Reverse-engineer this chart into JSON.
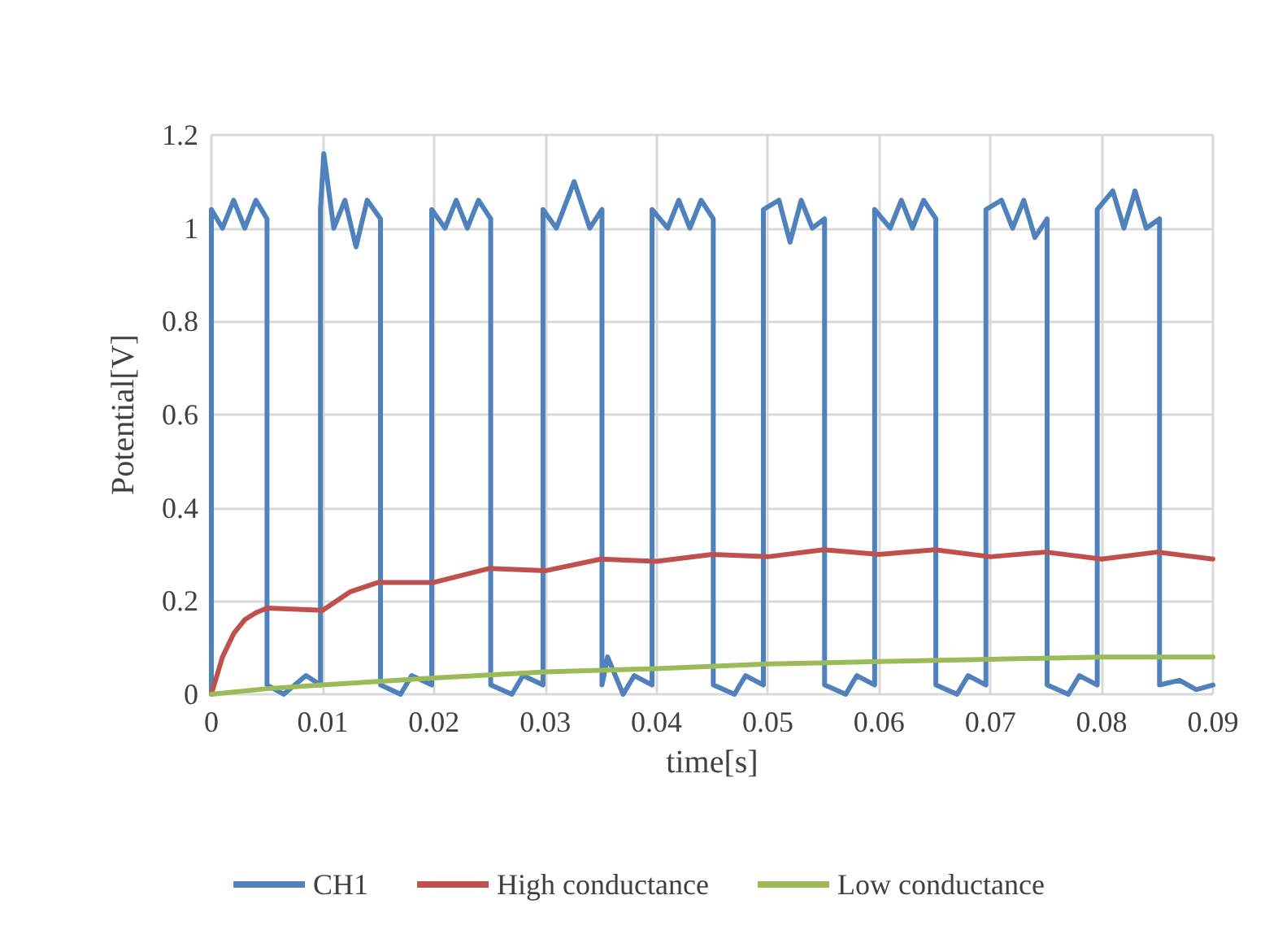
{
  "chart_data": {
    "type": "line",
    "xlabel": "time[s]",
    "ylabel": "Potential[V]",
    "xlim": [
      0,
      0.09
    ],
    "ylim": [
      0,
      1.2
    ],
    "xticks": [
      0,
      0.01,
      0.02,
      0.03,
      0.04,
      0.05,
      0.06,
      0.07,
      0.08,
      0.09
    ],
    "yticks": [
      0,
      0.2,
      0.4,
      0.6,
      0.8,
      1,
      1.2
    ],
    "grid": true,
    "legend": "bottom",
    "marker": "none",
    "line_style": "solid",
    "series": [
      {
        "name": "CH1",
        "color": "#4f81bd",
        "x": [
          0,
          0,
          0.001,
          0.002,
          0.003,
          0.004,
          0.005,
          0.005,
          0.0065,
          0.0085,
          0.0098,
          0.0098,
          0.0101,
          0.011,
          0.012,
          0.013,
          0.014,
          0.0152,
          0.0152,
          0.017,
          0.018,
          0.0198,
          0.0198,
          0.021,
          0.022,
          0.023,
          0.024,
          0.0251,
          0.0251,
          0.027,
          0.028,
          0.0298,
          0.0298,
          0.031,
          0.0326,
          0.034,
          0.0351,
          0.0351,
          0.0356,
          0.037,
          0.038,
          0.0396,
          0.0396,
          0.041,
          0.042,
          0.043,
          0.044,
          0.0451,
          0.0451,
          0.047,
          0.048,
          0.0496,
          0.0496,
          0.051,
          0.052,
          0.053,
          0.054,
          0.0551,
          0.0551,
          0.057,
          0.058,
          0.0596,
          0.0596,
          0.061,
          0.062,
          0.063,
          0.064,
          0.0651,
          0.0651,
          0.067,
          0.068,
          0.0696,
          0.0696,
          0.071,
          0.072,
          0.073,
          0.074,
          0.0751,
          0.0751,
          0.077,
          0.078,
          0.0796,
          0.0796,
          0.081,
          0.082,
          0.083,
          0.084,
          0.0852,
          0.0852,
          0.087,
          0.0885,
          0.09
        ],
        "values": [
          0,
          1.04,
          1,
          1.06,
          1,
          1.06,
          1.02,
          0.02,
          0,
          0.04,
          0.02,
          1.04,
          1.16,
          1,
          1.06,
          0.96,
          1.06,
          1.02,
          0.02,
          0,
          0.04,
          0.02,
          1.04,
          1,
          1.06,
          1,
          1.06,
          1.02,
          0.02,
          0,
          0.04,
          0.02,
          1.04,
          1,
          1.1,
          1,
          1.04,
          0.02,
          0.08,
          0,
          0.04,
          0.02,
          1.04,
          1,
          1.06,
          1,
          1.06,
          1.02,
          0.02,
          0,
          0.04,
          0.02,
          1.04,
          1.06,
          0.97,
          1.06,
          1,
          1.02,
          0.02,
          0,
          0.04,
          0.02,
          1.04,
          1,
          1.06,
          1,
          1.06,
          1.02,
          0.02,
          0,
          0.04,
          0.02,
          1.04,
          1.06,
          1,
          1.06,
          0.98,
          1.02,
          0.02,
          0,
          0.04,
          0.02,
          1.04,
          1.08,
          1,
          1.08,
          1,
          1.02,
          0.02,
          0.03,
          0.01,
          0.02
        ]
      },
      {
        "name": "High conductance",
        "color": "#c0504d",
        "x": [
          0,
          0.001,
          0.002,
          0.003,
          0.004,
          0.005,
          0.01,
          0.0125,
          0.015,
          0.02,
          0.025,
          0.03,
          0.035,
          0.04,
          0.045,
          0.05,
          0.055,
          0.06,
          0.065,
          0.07,
          0.075,
          0.08,
          0.085,
          0.09
        ],
        "values": [
          0,
          0.08,
          0.13,
          0.16,
          0.175,
          0.185,
          0.18,
          0.22,
          0.24,
          0.24,
          0.27,
          0.265,
          0.29,
          0.285,
          0.3,
          0.295,
          0.31,
          0.3,
          0.31,
          0.295,
          0.305,
          0.29,
          0.305,
          0.29
        ]
      },
      {
        "name": "Low conductance",
        "color": "#9bbb59",
        "x": [
          0,
          0.005,
          0.01,
          0.02,
          0.03,
          0.04,
          0.05,
          0.06,
          0.07,
          0.08,
          0.09
        ],
        "values": [
          0,
          0.012,
          0.02,
          0.035,
          0.048,
          0.055,
          0.065,
          0.07,
          0.075,
          0.08,
          0.08
        ]
      }
    ]
  }
}
